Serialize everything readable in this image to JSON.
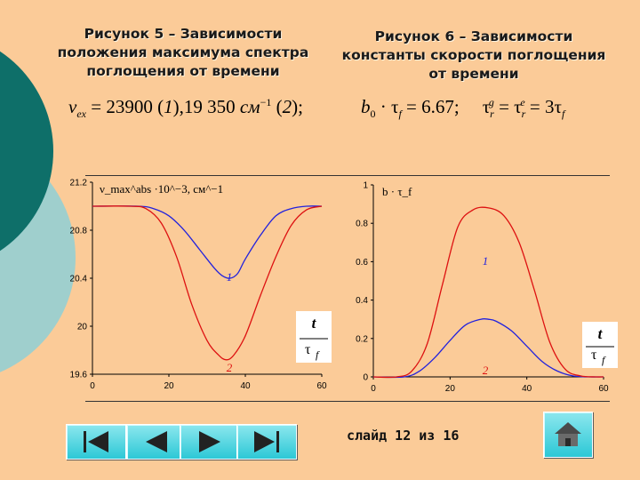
{
  "slide": {
    "counter": "слайд 12 из 16"
  },
  "figures": {
    "fig5_title": "Рисунок 5 – Зависимости\nположения максимума  спектра\nпоглощения от времени",
    "fig6_title": "Рисунок 6 – Зависимости\nконстанты скорости поглощения\nот времени"
  },
  "formulas": {
    "nu_symbol": "ν",
    "nu_sub": "ex",
    "nu_eq": " = 23900 (",
    "nu_one": "1",
    "nu_mid": "),19 350 ",
    "nu_unit": "см",
    "nu_exp": "−1",
    "nu_tail": " (",
    "nu_two": "2",
    "nu_end": ");",
    "b0": "b",
    "b0_sub": "0",
    "b0_dot": " · τ",
    "b0_f": "f",
    "b0_val": " = 6.67;",
    "tau_g": "τ",
    "tau_g_sub": "r",
    "tau_g_sup": "g",
    "tau_eq": " = τ",
    "tau_e_sub": "r",
    "tau_e_sup": "e",
    "tau_val": " = 3τ",
    "tau_f": "f"
  },
  "chart_data": [
    {
      "type": "line",
      "ylabel": "ν_max^abs ·10^−3, см^−1",
      "x_ticks": [
        "0",
        "20",
        "40",
        "60"
      ],
      "y_ticks": [
        "21.2",
        "20.8",
        "20.4",
        "20",
        "19.6"
      ],
      "xlim": [
        0,
        60
      ],
      "ylim": [
        19.6,
        21.2
      ],
      "x_label_box": {
        "top": "t",
        "bottom": "τ",
        "bottom_sub": "f"
      },
      "series": [
        {
          "name": "1",
          "color": "#2222dd",
          "x": [
            0,
            12,
            16,
            20,
            24,
            28,
            32,
            34,
            36,
            38,
            40,
            44,
            48,
            52,
            56,
            60
          ],
          "y": [
            21.0,
            21.0,
            20.98,
            20.92,
            20.8,
            20.64,
            20.48,
            20.42,
            20.4,
            20.44,
            20.56,
            20.76,
            20.92,
            20.98,
            21.0,
            21.0
          ]
        },
        {
          "name": "2",
          "color": "#dd1111",
          "x": [
            0,
            10,
            14,
            18,
            22,
            26,
            30,
            33,
            35,
            37,
            40,
            44,
            48,
            52,
            56,
            60
          ],
          "y": [
            21.0,
            21.0,
            20.98,
            20.86,
            20.58,
            20.18,
            19.88,
            19.76,
            19.72,
            19.76,
            19.92,
            20.26,
            20.58,
            20.84,
            20.97,
            21.0
          ]
        }
      ]
    },
    {
      "type": "line",
      "ylabel": "b · τ_f",
      "x_ticks": [
        "0",
        "20",
        "40",
        "60"
      ],
      "y_ticks": [
        "1",
        "0.8",
        "0.6",
        "0.4",
        "0.2",
        "0"
      ],
      "xlim": [
        0,
        60
      ],
      "ylim": [
        0,
        1
      ],
      "x_label_box": {
        "top": "t",
        "bottom": "τ",
        "bottom_sub": "f"
      },
      "series": [
        {
          "name": "1",
          "color": "#2222dd",
          "x": [
            0,
            8,
            12,
            16,
            20,
            24,
            28,
            30,
            32,
            36,
            40,
            44,
            48,
            52,
            56,
            60
          ],
          "y": [
            0,
            0,
            0.03,
            0.1,
            0.19,
            0.27,
            0.3,
            0.3,
            0.29,
            0.24,
            0.16,
            0.08,
            0.03,
            0.005,
            0,
            0
          ]
        },
        {
          "name": "2",
          "color": "#dd1111",
          "x": [
            0,
            6,
            10,
            14,
            18,
            22,
            26,
            30,
            34,
            38,
            42,
            46,
            50,
            54,
            58,
            60
          ],
          "y": [
            0,
            0,
            0.03,
            0.17,
            0.48,
            0.78,
            0.87,
            0.88,
            0.84,
            0.7,
            0.45,
            0.18,
            0.04,
            0.005,
            0,
            0
          ]
        }
      ]
    }
  ]
}
